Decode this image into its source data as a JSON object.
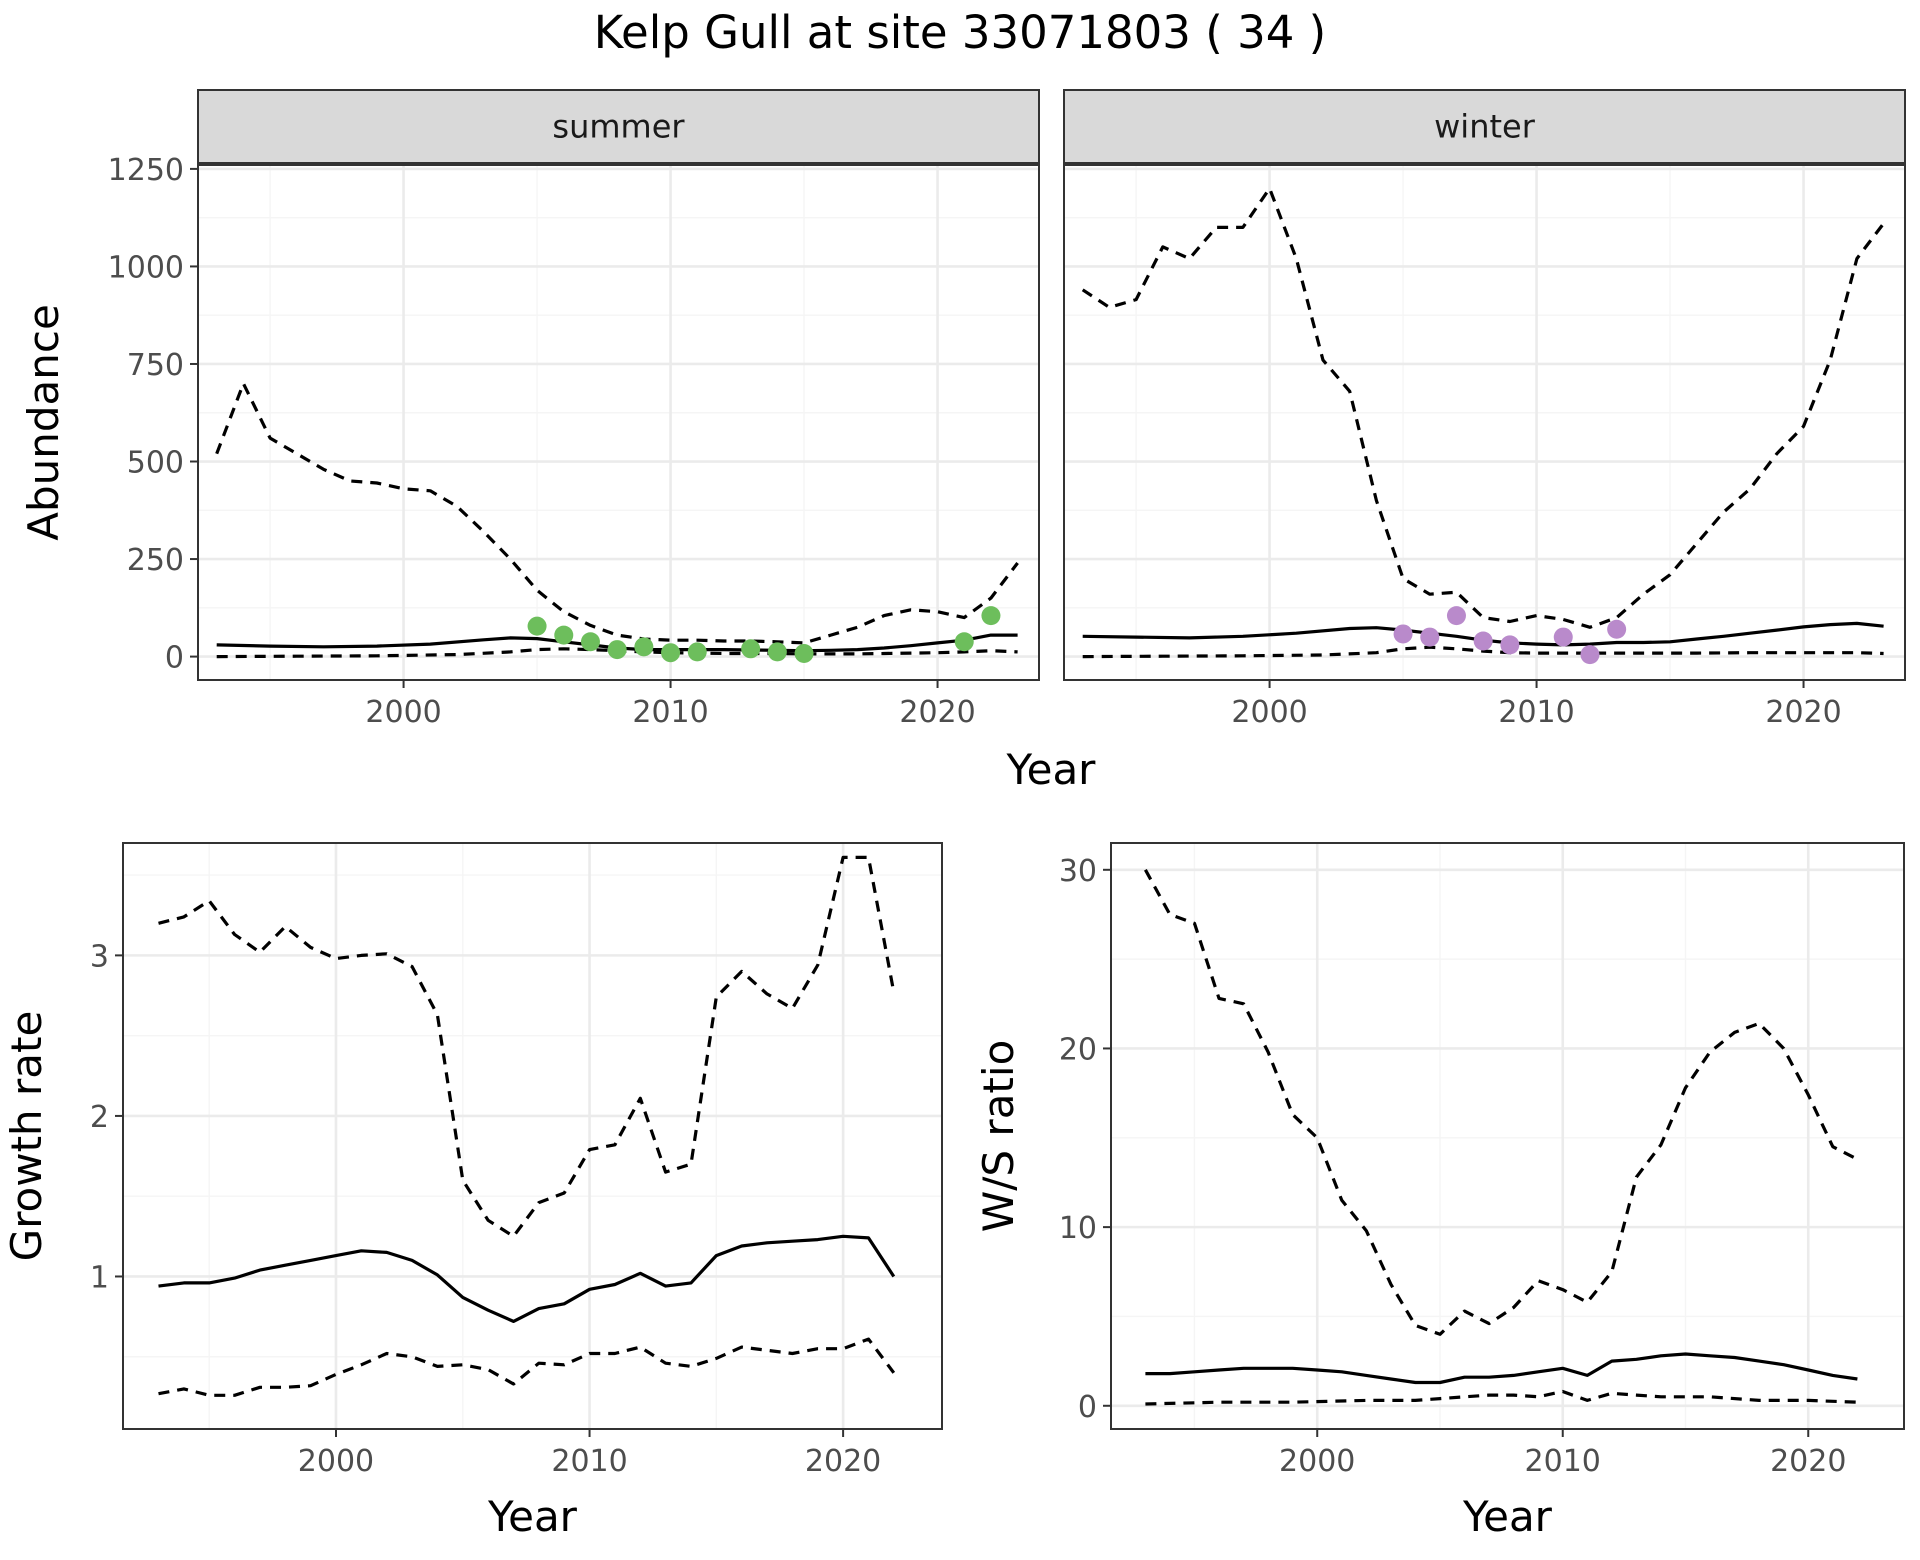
{
  "title": "Kelp Gull at site 33071803 ( 34 )",
  "colors": {
    "summer_points": "#6DBE5C",
    "winter_points": "#B98ACB",
    "line": "#000000",
    "strip_fill": "#D9D9D9",
    "grid_major": "#EBEBEB",
    "grid_minor": "#F5F5F5"
  },
  "chart_data": [
    {
      "type": "line",
      "panel": "summer",
      "strip_label": "summer",
      "xlabel": "Year",
      "ylabel": "Abundance",
      "xlim": [
        1992.3,
        2023.8
      ],
      "ylim": [
        -60,
        1260
      ],
      "x_ticks": [
        2000,
        2010,
        2020
      ],
      "y_ticks": [
        0,
        250,
        500,
        750,
        1000,
        1250
      ],
      "grid": true,
      "series": [
        {
          "role": "mean",
          "style": "solid",
          "x": [
            1993,
            1995,
            1997,
            1999,
            2001,
            2003,
            2004,
            2005,
            2006,
            2007,
            2008,
            2009,
            2010,
            2011,
            2012,
            2013,
            2014,
            2015,
            2016,
            2017,
            2018,
            2019,
            2020,
            2021,
            2022,
            2023
          ],
          "y": [
            30,
            27,
            25,
            27,
            32,
            43,
            48,
            46,
            38,
            30,
            22,
            18,
            18,
            18,
            18,
            17,
            16,
            15,
            16,
            18,
            22,
            28,
            35,
            42,
            55,
            55
          ]
        },
        {
          "role": "upper",
          "style": "dashed",
          "x": [
            1993,
            1994,
            1995,
            1996,
            1997,
            1998,
            1999,
            2000,
            2001,
            2002,
            2003,
            2004,
            2005,
            2006,
            2007,
            2008,
            2009,
            2010,
            2011,
            2012,
            2013,
            2014,
            2015,
            2016,
            2017,
            2018,
            2019,
            2020,
            2021,
            2022,
            2023
          ],
          "y": [
            520,
            700,
            560,
            520,
            480,
            450,
            445,
            430,
            425,
            385,
            320,
            250,
            170,
            115,
            80,
            55,
            45,
            42,
            42,
            40,
            40,
            38,
            35,
            55,
            75,
            105,
            120,
            115,
            100,
            150,
            240
          ]
        },
        {
          "role": "lower",
          "style": "dashed",
          "x": [
            1993,
            1996,
            1999,
            2002,
            2004,
            2005,
            2006,
            2007,
            2008,
            2009,
            2010,
            2011,
            2012,
            2013,
            2014,
            2015,
            2016,
            2017,
            2018,
            2019,
            2020,
            2021,
            2022,
            2023
          ],
          "y": [
            0,
            1,
            2,
            5,
            12,
            18,
            20,
            18,
            15,
            12,
            10,
            9,
            8,
            8,
            8,
            7,
            7,
            7,
            8,
            9,
            10,
            12,
            15,
            12
          ]
        }
      ],
      "points": {
        "x": [
          2005,
          2006,
          2007,
          2008,
          2009,
          2010,
          2011,
          2013,
          2014,
          2015,
          2021,
          2022
        ],
        "y": [
          78,
          55,
          38,
          18,
          25,
          10,
          12,
          20,
          12,
          8,
          38,
          105
        ]
      }
    },
    {
      "type": "line",
      "panel": "winter",
      "strip_label": "winter",
      "xlabel": "Year",
      "ylabel": "Abundance",
      "xlim": [
        1992.3,
        2023.8
      ],
      "ylim": [
        -60,
        1260
      ],
      "x_ticks": [
        2000,
        2010,
        2020
      ],
      "y_ticks": [
        0,
        250,
        500,
        750,
        1000,
        1250
      ],
      "grid": true,
      "series": [
        {
          "role": "mean",
          "style": "solid",
          "x": [
            1993,
            1995,
            1997,
            1999,
            2001,
            2003,
            2004,
            2005,
            2006,
            2007,
            2008,
            2009,
            2010,
            2011,
            2012,
            2013,
            2014,
            2015,
            2016,
            2017,
            2018,
            2019,
            2020,
            2021,
            2022,
            2023
          ],
          "y": [
            52,
            50,
            48,
            52,
            60,
            72,
            74,
            68,
            60,
            52,
            42,
            35,
            32,
            30,
            32,
            36,
            36,
            38,
            45,
            52,
            60,
            68,
            76,
            82,
            85,
            78
          ]
        },
        {
          "role": "upper",
          "style": "dashed",
          "x": [
            1993,
            1994,
            1995,
            1996,
            1997,
            1998,
            1999,
            2000,
            2001,
            2002,
            2003,
            2004,
            2005,
            2006,
            2007,
            2008,
            2009,
            2010,
            2011,
            2012,
            2013,
            2014,
            2015,
            2016,
            2017,
            2018,
            2019,
            2020,
            2021,
            2022,
            2023
          ],
          "y": [
            940,
            895,
            915,
            1050,
            1020,
            1100,
            1100,
            1200,
            1020,
            760,
            680,
            400,
            200,
            160,
            165,
            100,
            90,
            105,
            95,
            75,
            100,
            160,
            210,
            290,
            370,
            430,
            520,
            590,
            760,
            1020,
            1110
          ]
        },
        {
          "role": "lower",
          "style": "dashed",
          "x": [
            1993,
            1996,
            1999,
            2002,
            2004,
            2005,
            2006,
            2007,
            2008,
            2009,
            2010,
            2011,
            2012,
            2013,
            2014,
            2016,
            2018,
            2020,
            2022,
            2023
          ],
          "y": [
            0,
            1,
            2,
            4,
            10,
            20,
            24,
            20,
            14,
            10,
            9,
            9,
            9,
            9,
            9,
            9,
            10,
            10,
            10,
            8
          ]
        }
      ],
      "points": {
        "x": [
          2005,
          2006,
          2007,
          2008,
          2009,
          2011,
          2012,
          2013
        ],
        "y": [
          58,
          50,
          105,
          40,
          30,
          50,
          5,
          70
        ]
      }
    },
    {
      "type": "line",
      "panel": "growth",
      "xlabel": "Year",
      "ylabel": "Growth rate",
      "xlim": [
        1991.6,
        2023.9
      ],
      "ylim": [
        0.05,
        3.7
      ],
      "x_ticks": [
        2000,
        2010,
        2020
      ],
      "y_ticks": [
        1,
        2,
        3
      ],
      "grid": true,
      "series": [
        {
          "role": "mean",
          "style": "solid",
          "x": [
            1993,
            1994,
            1995,
            1996,
            1997,
            1998,
            1999,
            2000,
            2001,
            2002,
            2003,
            2004,
            2005,
            2006,
            2007,
            2008,
            2009,
            2010,
            2011,
            2012,
            2013,
            2014,
            2015,
            2016,
            2017,
            2018,
            2019,
            2020,
            2021,
            2022
          ],
          "y": [
            0.94,
            0.96,
            0.96,
            0.99,
            1.04,
            1.07,
            1.1,
            1.13,
            1.16,
            1.15,
            1.1,
            1.01,
            0.87,
            0.79,
            0.72,
            0.8,
            0.83,
            0.92,
            0.95,
            1.02,
            0.94,
            0.96,
            1.13,
            1.19,
            1.21,
            1.22,
            1.23,
            1.25,
            1.24,
            1.0
          ]
        },
        {
          "role": "upper",
          "style": "dashed",
          "x": [
            1993,
            1994,
            1995,
            1996,
            1997,
            1998,
            1999,
            2000,
            2001,
            2002,
            2003,
            2004,
            2005,
            2006,
            2007,
            2008,
            2009,
            2010,
            2011,
            2012,
            2013,
            2014,
            2015,
            2016,
            2017,
            2018,
            2019,
            2020,
            2021,
            2022
          ],
          "y": [
            3.2,
            3.24,
            3.34,
            3.13,
            3.02,
            3.18,
            3.05,
            2.98,
            3.0,
            3.01,
            2.93,
            2.63,
            1.6,
            1.35,
            1.25,
            1.46,
            1.52,
            1.79,
            1.82,
            2.11,
            1.65,
            1.7,
            2.74,
            2.9,
            2.76,
            2.67,
            2.94,
            3.61,
            3.61,
            2.77
          ]
        },
        {
          "role": "lower",
          "style": "dashed",
          "x": [
            1993,
            1994,
            1995,
            1996,
            1997,
            1998,
            1999,
            2000,
            2001,
            2002,
            2003,
            2004,
            2005,
            2006,
            2007,
            2008,
            2009,
            2010,
            2011,
            2012,
            2013,
            2014,
            2015,
            2016,
            2017,
            2018,
            2019,
            2020,
            2021,
            2022
          ],
          "y": [
            0.27,
            0.3,
            0.26,
            0.26,
            0.31,
            0.31,
            0.32,
            0.39,
            0.45,
            0.52,
            0.5,
            0.44,
            0.45,
            0.42,
            0.33,
            0.46,
            0.45,
            0.52,
            0.52,
            0.56,
            0.46,
            0.44,
            0.49,
            0.56,
            0.54,
            0.52,
            0.55,
            0.55,
            0.61,
            0.4
          ]
        }
      ]
    },
    {
      "type": "line",
      "panel": "ratio",
      "xlabel": "Year",
      "ylabel": "W/S ratio",
      "xlim": [
        1991.6,
        2023.9
      ],
      "ylim": [
        -1.3,
        31.5
      ],
      "x_ticks": [
        2000,
        2010,
        2020
      ],
      "y_ticks": [
        0,
        10,
        20,
        30
      ],
      "grid": true,
      "series": [
        {
          "role": "mean",
          "style": "solid",
          "x": [
            1993,
            1994,
            1995,
            1996,
            1997,
            1998,
            1999,
            2000,
            2001,
            2002,
            2003,
            2004,
            2005,
            2006,
            2007,
            2008,
            2009,
            2010,
            2011,
            2012,
            2013,
            2014,
            2015,
            2016,
            2017,
            2018,
            2019,
            2020,
            2021,
            2022
          ],
          "y": [
            1.8,
            1.8,
            1.9,
            2.0,
            2.1,
            2.1,
            2.1,
            2.0,
            1.9,
            1.7,
            1.5,
            1.3,
            1.3,
            1.6,
            1.6,
            1.7,
            1.9,
            2.1,
            1.7,
            2.5,
            2.6,
            2.8,
            2.9,
            2.8,
            2.7,
            2.5,
            2.3,
            2.0,
            1.7,
            1.5
          ]
        },
        {
          "role": "upper",
          "style": "dashed",
          "x": [
            1993,
            1994,
            1995,
            1996,
            1997,
            1998,
            1999,
            2000,
            2001,
            2002,
            2003,
            2004,
            2005,
            2006,
            2007,
            2008,
            2009,
            2010,
            2011,
            2012,
            2013,
            2014,
            2015,
            2016,
            2017,
            2018,
            2019,
            2020,
            2021,
            2022
          ],
          "y": [
            30.0,
            27.5,
            27.0,
            22.8,
            22.5,
            19.8,
            16.3,
            15.0,
            11.5,
            9.8,
            6.8,
            4.5,
            4.0,
            5.3,
            4.6,
            5.5,
            7.0,
            6.5,
            5.8,
            7.5,
            12.8,
            14.6,
            17.8,
            19.8,
            20.9,
            21.4,
            20.0,
            17.4,
            14.5,
            13.8
          ]
        },
        {
          "role": "lower",
          "style": "dashed",
          "x": [
            1993,
            1996,
            1999,
            2002,
            2004,
            2005,
            2006,
            2007,
            2008,
            2009,
            2010,
            2011,
            2012,
            2013,
            2014,
            2016,
            2018,
            2020,
            2022
          ],
          "y": [
            0.1,
            0.2,
            0.2,
            0.3,
            0.3,
            0.4,
            0.5,
            0.6,
            0.6,
            0.5,
            0.8,
            0.3,
            0.7,
            0.6,
            0.5,
            0.5,
            0.3,
            0.3,
            0.2
          ]
        }
      ]
    }
  ]
}
